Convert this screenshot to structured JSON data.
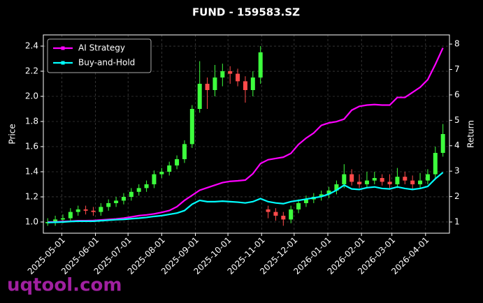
{
  "chart_data": {
    "type": "candlestick",
    "title": "FUND - 159583.SZ",
    "ylabel": "Price",
    "y2label": "Return",
    "watermark": "uqtool.com",
    "legend": "upper left",
    "grid": true,
    "up_color": "#3dff3d",
    "down_color": "#ff4a4a",
    "x": [
      "2025-04-18",
      "2025-04-25",
      "2025-05-02",
      "2025-05-09",
      "2025-05-16",
      "2025-05-23",
      "2025-05-30",
      "2025-06-06",
      "2025-06-13",
      "2025-06-20",
      "2025-06-27",
      "2025-07-04",
      "2025-07-11",
      "2025-07-18",
      "2025-07-25",
      "2025-08-01",
      "2025-08-08",
      "2025-08-15",
      "2025-08-22",
      "2025-08-29",
      "2025-09-05",
      "2025-09-12",
      "2025-09-19",
      "2025-09-26",
      "2025-10-03",
      "2025-10-10",
      "2025-10-17",
      "2025-10-24",
      "2025-10-31",
      "2025-11-07",
      "2025-11-14",
      "2025-11-21",
      "2025-11-28",
      "2025-12-05",
      "2025-12-12",
      "2025-12-19",
      "2025-12-26",
      "2026-01-02",
      "2026-01-09",
      "2026-01-16",
      "2026-01-23",
      "2026-01-30",
      "2026-02-06",
      "2026-02-13",
      "2026-02-20",
      "2026-02-27",
      "2026-03-06",
      "2026-03-13",
      "2026-03-20",
      "2026-03-27",
      "2026-04-03",
      "2026-04-10",
      "2026-04-17"
    ],
    "open": [
      0.99,
      1.0,
      1.02,
      1.03,
      1.08,
      1.1,
      1.09,
      1.08,
      1.12,
      1.15,
      1.17,
      1.2,
      1.24,
      1.27,
      1.3,
      1.38,
      1.4,
      1.45,
      1.5,
      1.62,
      1.9,
      2.1,
      2.05,
      2.15,
      2.2,
      2.18,
      2.12,
      2.05,
      2.15,
      1.1,
      1.08,
      1.05,
      1.02,
      1.1,
      1.15,
      1.18,
      1.2,
      1.22,
      1.25,
      1.3,
      1.38,
      1.32,
      1.3,
      1.33,
      1.35,
      1.32,
      1.3,
      1.36,
      1.33,
      1.3,
      1.33,
      1.38,
      1.55
    ],
    "high": [
      1.03,
      1.05,
      1.06,
      1.11,
      1.13,
      1.13,
      1.12,
      1.15,
      1.18,
      1.2,
      1.23,
      1.27,
      1.3,
      1.33,
      1.41,
      1.43,
      1.48,
      1.53,
      1.65,
      1.93,
      2.28,
      2.15,
      2.25,
      2.26,
      2.24,
      2.22,
      2.16,
      2.2,
      2.4,
      1.13,
      1.11,
      1.08,
      1.13,
      1.18,
      1.21,
      1.23,
      1.25,
      1.28,
      1.33,
      1.46,
      1.42,
      1.38,
      1.4,
      1.4,
      1.38,
      1.38,
      1.43,
      1.4,
      1.37,
      1.39,
      1.42,
      1.6,
      1.78
    ],
    "low": [
      0.97,
      0.97,
      0.99,
      1.0,
      1.05,
      1.06,
      1.05,
      1.05,
      1.09,
      1.12,
      1.14,
      1.17,
      1.21,
      1.24,
      1.27,
      1.35,
      1.37,
      1.42,
      1.47,
      1.59,
      1.87,
      1.9,
      2.0,
      2.08,
      2.1,
      2.08,
      1.95,
      2.0,
      2.1,
      1.03,
      1.01,
      0.97,
      0.99,
      1.07,
      1.12,
      1.15,
      1.17,
      1.19,
      1.22,
      1.27,
      1.29,
      1.27,
      1.27,
      1.3,
      1.29,
      1.27,
      1.27,
      1.3,
      1.26,
      1.27,
      1.3,
      1.35,
      1.52
    ],
    "close": [
      1.0,
      1.02,
      1.03,
      1.08,
      1.1,
      1.09,
      1.08,
      1.12,
      1.15,
      1.17,
      1.2,
      1.24,
      1.27,
      1.3,
      1.38,
      1.4,
      1.45,
      1.5,
      1.62,
      1.9,
      2.1,
      2.05,
      2.15,
      2.2,
      2.18,
      2.12,
      2.05,
      2.15,
      2.35,
      1.08,
      1.05,
      1.02,
      1.1,
      1.15,
      1.18,
      1.2,
      1.22,
      1.25,
      1.3,
      1.38,
      1.32,
      1.3,
      1.33,
      1.35,
      1.32,
      1.3,
      1.36,
      1.33,
      1.3,
      1.33,
      1.38,
      1.55,
      1.7
    ],
    "series": [
      {
        "name": "AI Strategy",
        "color": "#ff00ff",
        "axis": "y2",
        "values": [
          1.0,
          1.0,
          1.02,
          1.03,
          1.05,
          1.05,
          1.06,
          1.08,
          1.1,
          1.12,
          1.15,
          1.2,
          1.25,
          1.28,
          1.32,
          1.38,
          1.45,
          1.6,
          1.85,
          2.05,
          2.25,
          2.35,
          2.45,
          2.55,
          2.6,
          2.62,
          2.65,
          2.9,
          3.3,
          3.45,
          3.5,
          3.55,
          3.7,
          4.05,
          4.3,
          4.5,
          4.8,
          4.9,
          4.95,
          5.05,
          5.4,
          5.55,
          5.6,
          5.62,
          5.6,
          5.6,
          5.9,
          5.9,
          6.1,
          6.3,
          6.6,
          7.2,
          7.85
        ]
      },
      {
        "name": "Buy-and-Hold",
        "color": "#00ffff",
        "axis": "y2",
        "values": [
          0.98,
          0.99,
          1.0,
          1.02,
          1.03,
          1.03,
          1.03,
          1.05,
          1.07,
          1.09,
          1.1,
          1.13,
          1.15,
          1.18,
          1.22,
          1.25,
          1.3,
          1.35,
          1.45,
          1.7,
          1.85,
          1.8,
          1.8,
          1.82,
          1.8,
          1.78,
          1.75,
          1.8,
          1.92,
          1.8,
          1.75,
          1.72,
          1.8,
          1.85,
          1.9,
          1.95,
          2.0,
          2.1,
          2.25,
          2.45,
          2.3,
          2.28,
          2.35,
          2.38,
          2.32,
          2.3,
          2.38,
          2.32,
          2.28,
          2.32,
          2.4,
          2.7,
          2.95
        ]
      }
    ],
    "xlim": [
      "2025-04-14",
      "2026-04-23"
    ],
    "xticks": [
      "2025-05-01",
      "2025-06-01",
      "2025-07-01",
      "2025-08-01",
      "2025-09-01",
      "2025-10-01",
      "2025-11-01",
      "2025-12-01",
      "2026-01-01",
      "2026-02-01",
      "2026-03-01",
      "2026-04-01"
    ],
    "ylim": [
      0.911,
      2.489
    ],
    "yticks": [
      {
        "value": 1,
        "label": "1.0"
      },
      1.2,
      1.4,
      1.6,
      1.8,
      {
        "value": 2,
        "label": "2.0"
      },
      2.2,
      2.4
    ],
    "y2lim": [
      0.56,
      8.36
    ],
    "y2ticks": [
      1,
      2,
      3,
      4,
      5,
      6,
      7,
      8
    ]
  }
}
